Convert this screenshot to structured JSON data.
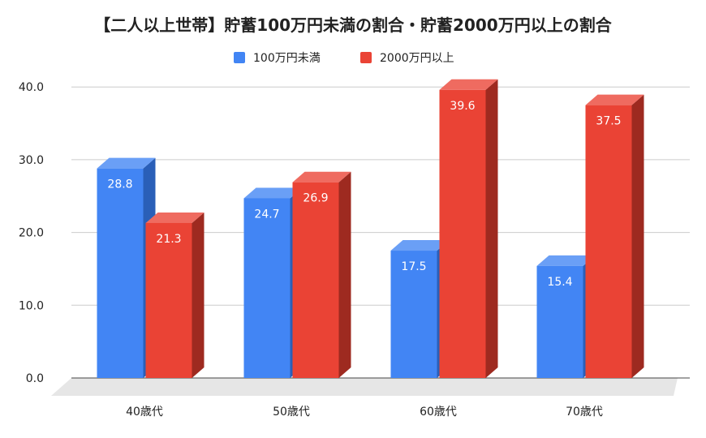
{
  "chart_data": {
    "type": "bar",
    "title": "【二人以上世帯】貯蓄100万円未満の割合・貯蓄2000万円以上の割合",
    "categories": [
      "40歳代",
      "50歳代",
      "60歳代",
      "70歳代"
    ],
    "series": [
      {
        "name": "100万円未満",
        "values": [
          28.8,
          24.7,
          17.5,
          15.4
        ],
        "color": "#4285f4",
        "side_color": "#2a5fb8",
        "top_color": "#6a9ff6"
      },
      {
        "name": "2000万円以上",
        "values": [
          21.3,
          26.9,
          39.6,
          37.5
        ],
        "color": "#ea4335",
        "side_color": "#9e2a20",
        "top_color": "#ef6b60"
      }
    ],
    "data_labels": [
      [
        "28.8",
        "24.7",
        "17.5",
        "15.4"
      ],
      [
        "21.3",
        "26.9",
        "39.6",
        "37.5"
      ]
    ],
    "yticks": [
      "0.0",
      "10.0",
      "20.0",
      "30.0",
      "40.0"
    ],
    "ylim": [
      0,
      40
    ],
    "xlabel": "",
    "ylabel": "",
    "grid": true,
    "legend_position": "top",
    "style": "3d-bar"
  }
}
